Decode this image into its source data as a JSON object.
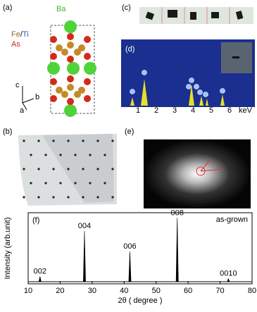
{
  "panels": {
    "a": {
      "label": "(a)",
      "legend": {
        "ba": "Ba",
        "fe": "Fe",
        "slash": "/",
        "ti": "Ti",
        "as": "As"
      },
      "axes": {
        "c": "c",
        "b": "b",
        "a": "a"
      }
    },
    "b": {
      "label": "(b)"
    },
    "c": {
      "label": "(c)"
    },
    "d": {
      "label": "(d)",
      "xtick_labels": [
        "1",
        "2",
        "3",
        "4",
        "5",
        "6"
      ],
      "unit": "keV"
    },
    "e": {
      "label": "(e)"
    }
  },
  "chart_data": {
    "type": "spectrum",
    "panel_label": "(f)",
    "annotation": "as-grown",
    "xlabel": "2θ ( degree )",
    "ylabel": "Intensity (arb.unit)",
    "x": [
      13.7,
      27.6,
      41.8,
      56.6,
      72.6
    ],
    "values": [
      11,
      80,
      49,
      100,
      8
    ],
    "peak_labels": [
      "002",
      "004",
      "006",
      "008",
      "0010"
    ],
    "xlim": [
      10,
      80
    ],
    "xticks": [
      10,
      20,
      30,
      40,
      50,
      60,
      70,
      80
    ],
    "ylim": [
      0,
      108
    ],
    "color": "#000000"
  }
}
